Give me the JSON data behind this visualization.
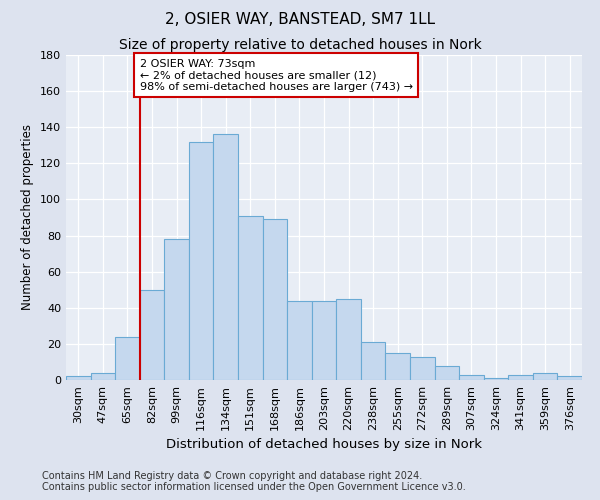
{
  "title1": "2, OSIER WAY, BANSTEAD, SM7 1LL",
  "title2": "Size of property relative to detached houses in Nork",
  "xlabel": "Distribution of detached houses by size in Nork",
  "ylabel": "Number of detached properties",
  "categories": [
    "30sqm",
    "47sqm",
    "65sqm",
    "82sqm",
    "99sqm",
    "116sqm",
    "134sqm",
    "151sqm",
    "168sqm",
    "186sqm",
    "203sqm",
    "220sqm",
    "238sqm",
    "255sqm",
    "272sqm",
    "289sqm",
    "307sqm",
    "324sqm",
    "341sqm",
    "359sqm",
    "376sqm"
  ],
  "values": [
    2,
    4,
    24,
    50,
    78,
    132,
    136,
    91,
    89,
    44,
    44,
    45,
    21,
    15,
    13,
    8,
    3,
    1,
    3,
    4,
    2
  ],
  "bar_color": "#c5d8ee",
  "bar_edge_color": "#6aaad4",
  "vline_x_index": 2.5,
  "annotation_box_text_line1": "2 OSIER WAY: 73sqm",
  "annotation_box_text_line2": "← 2% of detached houses are smaller (12)",
  "annotation_box_text_line3": "98% of semi-detached houses are larger (743) →",
  "vline_color": "#cc0000",
  "box_edge_color": "#cc0000",
  "ylim": [
    0,
    180
  ],
  "yticks": [
    0,
    20,
    40,
    60,
    80,
    100,
    120,
    140,
    160,
    180
  ],
  "footer_line1": "Contains HM Land Registry data © Crown copyright and database right 2024.",
  "footer_line2": "Contains public sector information licensed under the Open Government Licence v3.0.",
  "bg_color": "#dde3ef",
  "plot_bg_color": "#e8edf5",
  "title1_fontsize": 11,
  "title2_fontsize": 10,
  "xlabel_fontsize": 9.5,
  "ylabel_fontsize": 8.5,
  "tick_fontsize": 8,
  "annot_fontsize": 8,
  "footer_fontsize": 7
}
